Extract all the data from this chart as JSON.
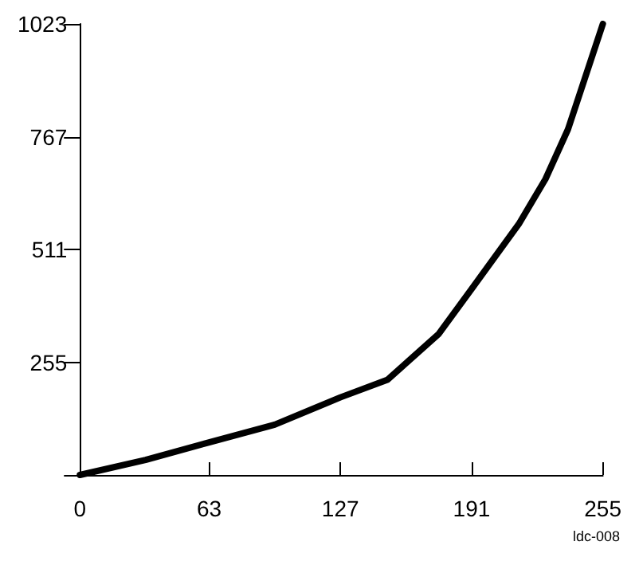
{
  "chart_data": {
    "type": "line",
    "x": [
      0,
      32,
      63,
      95,
      127,
      150,
      175,
      191,
      214,
      227,
      238,
      255
    ],
    "series": [
      {
        "color": "#000000",
        "values": [
          0,
          34,
          74,
          114,
          176,
          216,
          320,
          422,
          569,
          671,
          784,
          1023
        ]
      }
    ],
    "xlim": [
      0,
      255
    ],
    "xticks": [
      0,
      63,
      127,
      191,
      255
    ],
    "ylim": [
      0,
      1023
    ],
    "yticks": [
      {
        "value": 0,
        "label": null
      },
      255,
      511,
      767,
      1023
    ],
    "grid": false,
    "marker": "none",
    "line_style": "solid",
    "annotations": [
      "ldc-008"
    ]
  }
}
